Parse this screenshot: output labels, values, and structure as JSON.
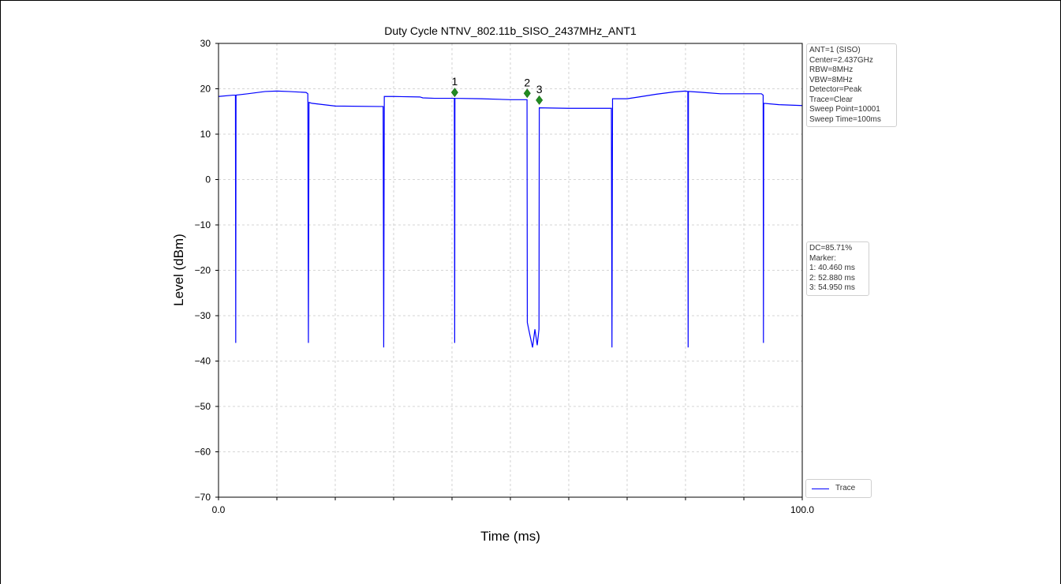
{
  "chart_data": {
    "type": "line",
    "title": "Duty Cycle NTNV_802.11b_SISO_2437MHz_ANT1",
    "xlabel": "Time (ms)",
    "ylabel": "Level (dBm)",
    "xlim": [
      0,
      100
    ],
    "ylim": [
      -70,
      30
    ],
    "xtick_labels": [
      "0.0",
      "100.0"
    ],
    "ytick_labels": [
      "30",
      "20",
      "10",
      "0",
      "−10",
      "−20",
      "−30",
      "−40",
      "−50",
      "−60",
      "−70"
    ],
    "grid": true,
    "legend_position": "bottom-right",
    "series": [
      {
        "name": "Trace",
        "color": "#0000ff",
        "points": [
          [
            0,
            18.3
          ],
          [
            2.5,
            18.6
          ],
          [
            2.9,
            18.6
          ],
          [
            2.95,
            -36
          ],
          [
            3.0,
            18.6
          ],
          [
            5,
            18.9
          ],
          [
            8,
            19.4
          ],
          [
            10,
            19.5
          ],
          [
            12,
            19.4
          ],
          [
            15,
            19.2
          ],
          [
            15.3,
            18.9
          ],
          [
            15.4,
            -36
          ],
          [
            15.5,
            17.0
          ],
          [
            16,
            16.8
          ],
          [
            18,
            16.5
          ],
          [
            20,
            16.2
          ],
          [
            27.5,
            16.1
          ],
          [
            28.2,
            16.1
          ],
          [
            28.3,
            -37
          ],
          [
            28.4,
            18.3
          ],
          [
            30,
            18.3
          ],
          [
            34.5,
            18.2
          ],
          [
            35,
            18.0
          ],
          [
            37,
            17.9
          ],
          [
            40.4,
            17.9
          ],
          [
            40.46,
            -36
          ],
          [
            40.5,
            17.9
          ],
          [
            45,
            17.8
          ],
          [
            50,
            17.6
          ],
          [
            52,
            17.6
          ],
          [
            52.85,
            17.6
          ],
          [
            52.9,
            -31.5
          ],
          [
            53.3,
            -34
          ],
          [
            53.8,
            -37
          ],
          [
            54.2,
            -33
          ],
          [
            54.6,
            -36.5
          ],
          [
            54.9,
            -33
          ],
          [
            54.95,
            15.8
          ],
          [
            60,
            15.7
          ],
          [
            67.3,
            15.7
          ],
          [
            67.4,
            -37
          ],
          [
            67.5,
            17.8
          ],
          [
            70,
            17.8
          ],
          [
            72,
            18.2
          ],
          [
            75,
            18.8
          ],
          [
            78,
            19.3
          ],
          [
            80,
            19.5
          ],
          [
            80.4,
            19.4
          ],
          [
            80.45,
            -37
          ],
          [
            80.5,
            19.4
          ],
          [
            83,
            19.2
          ],
          [
            86,
            18.9
          ],
          [
            93,
            18.9
          ],
          [
            93.3,
            18.6
          ],
          [
            93.35,
            -36
          ],
          [
            93.4,
            16.8
          ],
          [
            96,
            16.5
          ],
          [
            100,
            16.3
          ]
        ]
      }
    ],
    "markers": [
      {
        "label": "1",
        "x": 40.46,
        "y": 19.2,
        "color": "#228b22"
      },
      {
        "label": "2",
        "x": 52.88,
        "y": 19.0,
        "color": "#228b22"
      },
      {
        "label": "3",
        "x": 54.95,
        "y": 17.5,
        "color": "#228b22"
      }
    ],
    "annotations": {
      "settings": [
        "ANT=1 (SISO)",
        "Center=2.437GHz",
        "RBW=8MHz",
        "VBW=8MHz",
        "Detector=Peak",
        "Trace=Clear",
        "Sweep Point=10001",
        "Sweep Time=100ms"
      ],
      "results": [
        "DC=85.71%",
        "Marker:",
        "1: 40.460 ms",
        "2: 52.880 ms",
        "3: 54.950 ms"
      ]
    }
  }
}
